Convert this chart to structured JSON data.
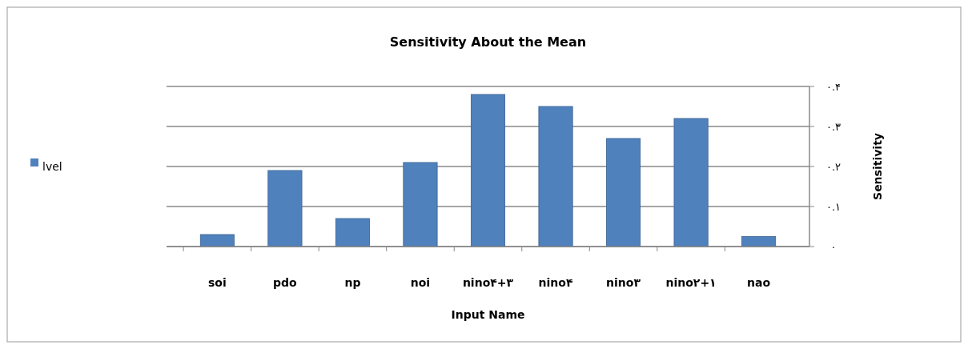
{
  "chart_data": {
    "type": "bar",
    "title": "Sensitivity About the Mean",
    "xlabel": "Input Name",
    "ylabel": "Sensitivity",
    "categories": [
      "soi",
      "pdo",
      "np",
      "noi",
      "nino۴+۳",
      "nino۴",
      "nino۳",
      "nino۲+۱",
      "nao"
    ],
    "series": [
      {
        "name": "lvel",
        "color": "#4f81bd",
        "values": [
          0.03,
          0.19,
          0.07,
          0.21,
          0.38,
          0.35,
          0.27,
          0.32,
          0.025
        ]
      }
    ],
    "ylim": [
      0,
      0.4
    ],
    "yticks": [
      {
        "value": 0,
        "label": "۰"
      },
      {
        "value": 0.1,
        "label": "۰.۱"
      },
      {
        "value": 0.2,
        "label": "۰.۲"
      },
      {
        "value": 0.3,
        "label": "۰.۳"
      },
      {
        "value": 0.4,
        "label": "۰.۴"
      }
    ],
    "grid": "y",
    "legend": "left"
  }
}
